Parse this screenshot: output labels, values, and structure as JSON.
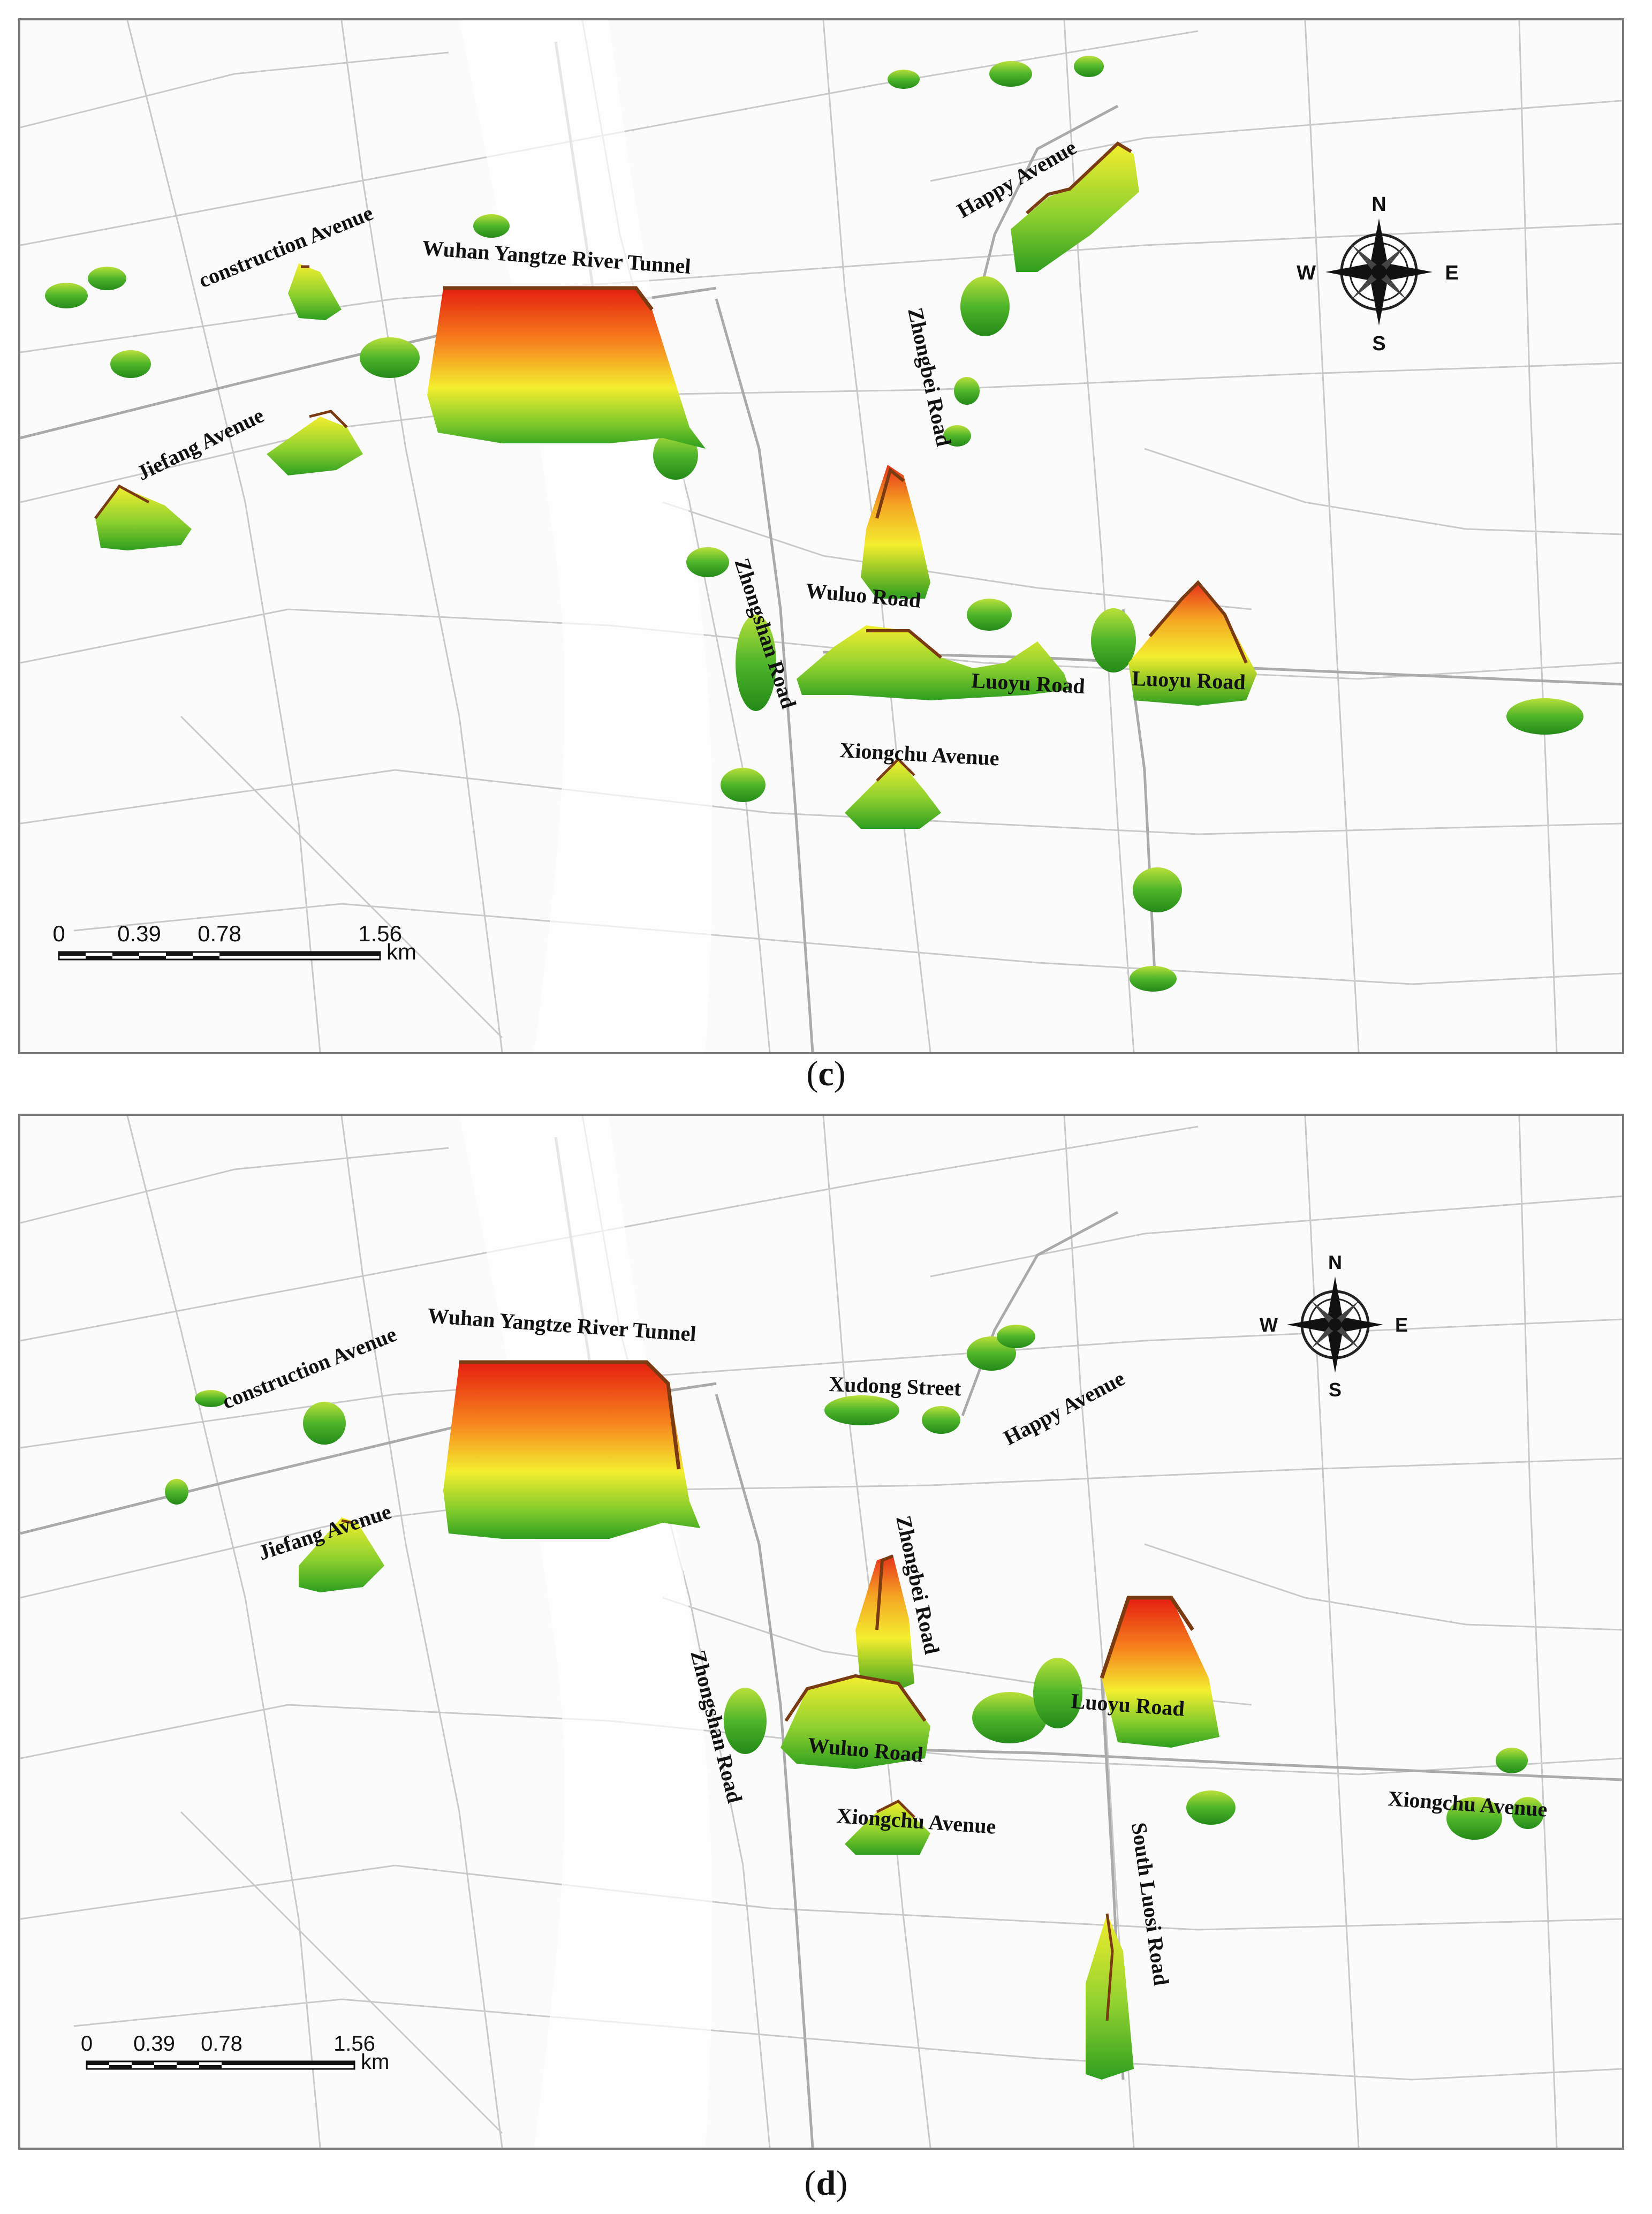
{
  "panels": [
    {
      "id": "c",
      "caption_letter": "c",
      "labels": [
        "construction Avenue",
        "Wuhan Yangtze River Tunnel",
        "Happy Avenue",
        "Zhongbei Road",
        "Jiefang Avenue",
        "Wuluo Road",
        "Zhongshan Road",
        "Luoyu Road",
        "Luoyu Road",
        "Xiongchu Avenue"
      ]
    },
    {
      "id": "d",
      "caption_letter": "d",
      "labels": [
        "construction Avenue",
        "Wuhan Yangtze River Tunnel",
        "Xudong Street",
        "Happy Avenue",
        "Jiefang Avenue",
        "Zhongbei Road",
        "Zhongshan Road",
        "Wuluo Road",
        "Luoyu Road",
        "Xiongchu Avenue",
        "Xiongchu Avenue",
        "South Luosi Road"
      ]
    }
  ],
  "compass": {
    "n": "N",
    "s": "S",
    "e": "E",
    "w": "W"
  },
  "scale_bar": {
    "ticks": [
      "0",
      "0.39",
      "0.78",
      "1.56"
    ],
    "unit": "km"
  },
  "colors": {
    "road": "#c9c9c9",
    "major_road": "#aaaaaa",
    "low": "#2e9e1f",
    "mid": "#f3ee2e",
    "high": "#e51e10",
    "ridge": "#7a3a12"
  }
}
